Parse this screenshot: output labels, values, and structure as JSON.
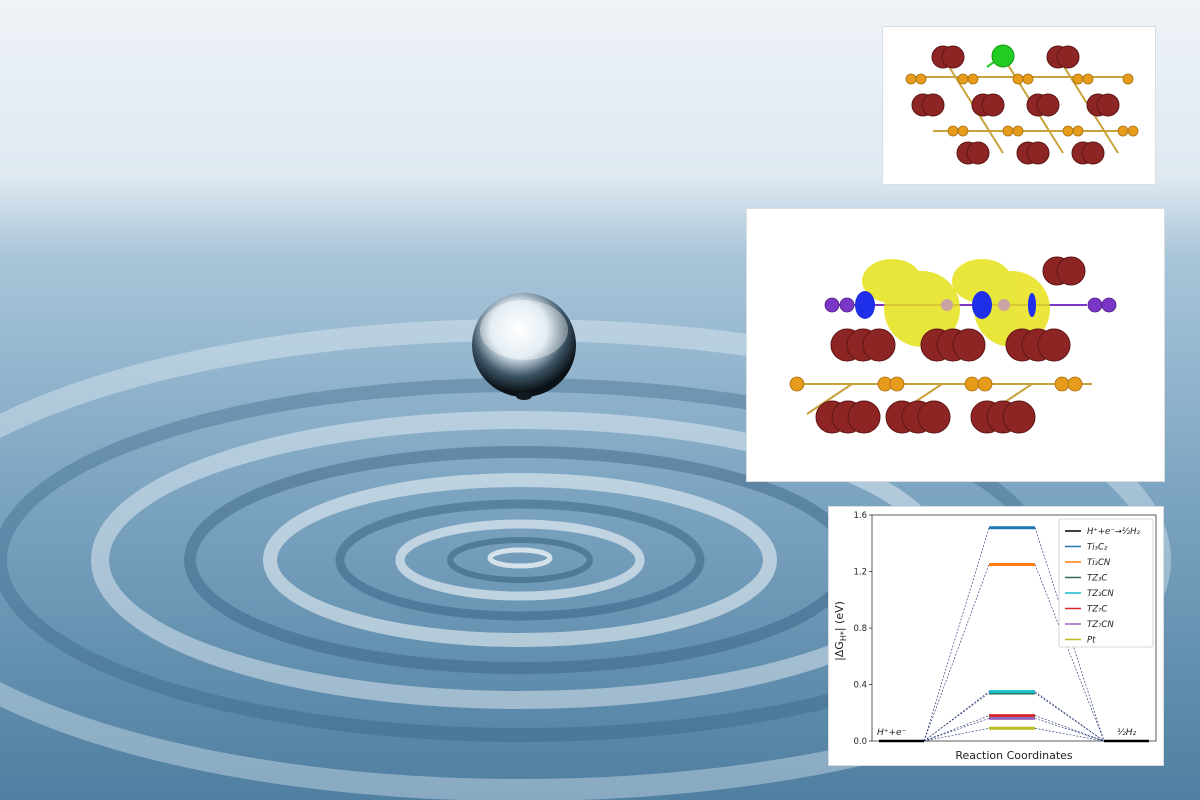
{
  "scene": {
    "description_icons": [
      "water-drop-icon",
      "water-ripple-icon"
    ],
    "colors": {
      "water_light": "#dfe9f1",
      "water_mid": "#8fb3cc",
      "water_deep": "#3f6f93",
      "bond": "#c9a23a",
      "metal": "#8e2525",
      "carbon": "#e69b1a",
      "hydrogen": "#22cc22",
      "iodine": "#7a36c4",
      "charge_yellow": "#e6e21a",
      "charge_blue": "#1f2ee8"
    }
  },
  "chart_data": {
    "type": "line",
    "title": "",
    "xlabel": "Reaction Coordinates",
    "ylabel": "|ΔG",
    "ylabel_sub": "H*",
    "ylabel_tail": "| (eV)",
    "ylim": [
      0,
      1.6
    ],
    "yticks": [
      "0.0",
      "0.4",
      "0.8",
      "1.2",
      "1.6"
    ],
    "ytick_values": [
      0,
      0.4,
      0.8,
      1.2,
      1.6
    ],
    "x_states": [
      "H⁺+e⁻",
      "",
      "½H₂"
    ],
    "state_left_label": "H⁺+e⁻",
    "state_right_label": "½H₂",
    "legend_position": "top-right",
    "series": [
      {
        "name": "H⁺+e⁻→½H₂",
        "value": 0.0,
        "color": "#000000"
      },
      {
        "name": "Ti₃C₂",
        "value": 1.51,
        "color": "#1f77b4"
      },
      {
        "name": "Ti₃CN",
        "value": 1.25,
        "color": "#ff7f0e"
      },
      {
        "name": "TZ₃C",
        "value": 0.34,
        "color": "#2f6f4f"
      },
      {
        "name": "TZ₃CN",
        "value": 0.35,
        "color": "#17becf"
      },
      {
        "name": "TZ₇C",
        "value": 0.18,
        "color": "#d62728"
      },
      {
        "name": "TZ₇CN",
        "value": 0.16,
        "color": "#9467bd"
      },
      {
        "name": "Pt",
        "value": 0.09,
        "color": "#bcbd22"
      }
    ]
  }
}
